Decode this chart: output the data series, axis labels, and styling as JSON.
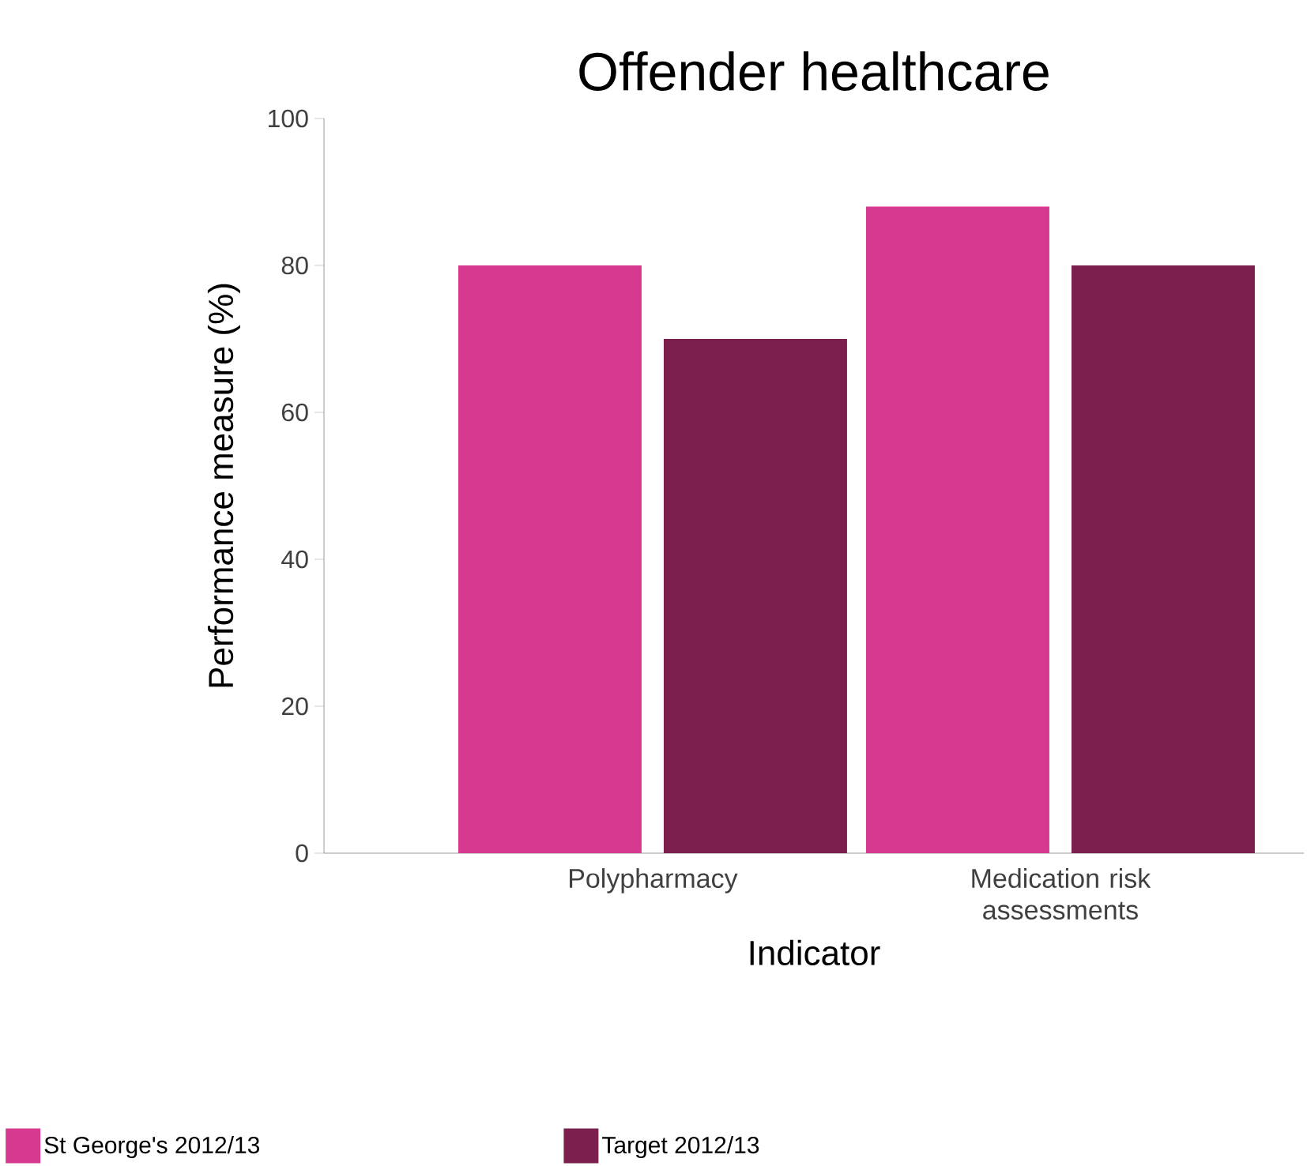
{
  "chart_data": {
    "type": "bar",
    "title": "Offender healthcare",
    "xlabel": "Indicator",
    "ylabel": "Performance measure (%)",
    "categories": [
      "Polypharmacy",
      "Medication risk assessments"
    ],
    "series": [
      {
        "name": "St George's 2012/13",
        "color": "#d63a8e",
        "values": [
          80,
          88
        ]
      },
      {
        "name": "Target 2012/13",
        "color": "#7b1f4f",
        "values": [
          70,
          80
        ]
      }
    ],
    "ylim": [
      0,
      100
    ],
    "yticks": [
      0,
      20,
      40,
      60,
      80,
      100
    ],
    "grid": false,
    "legend": "bottom"
  }
}
